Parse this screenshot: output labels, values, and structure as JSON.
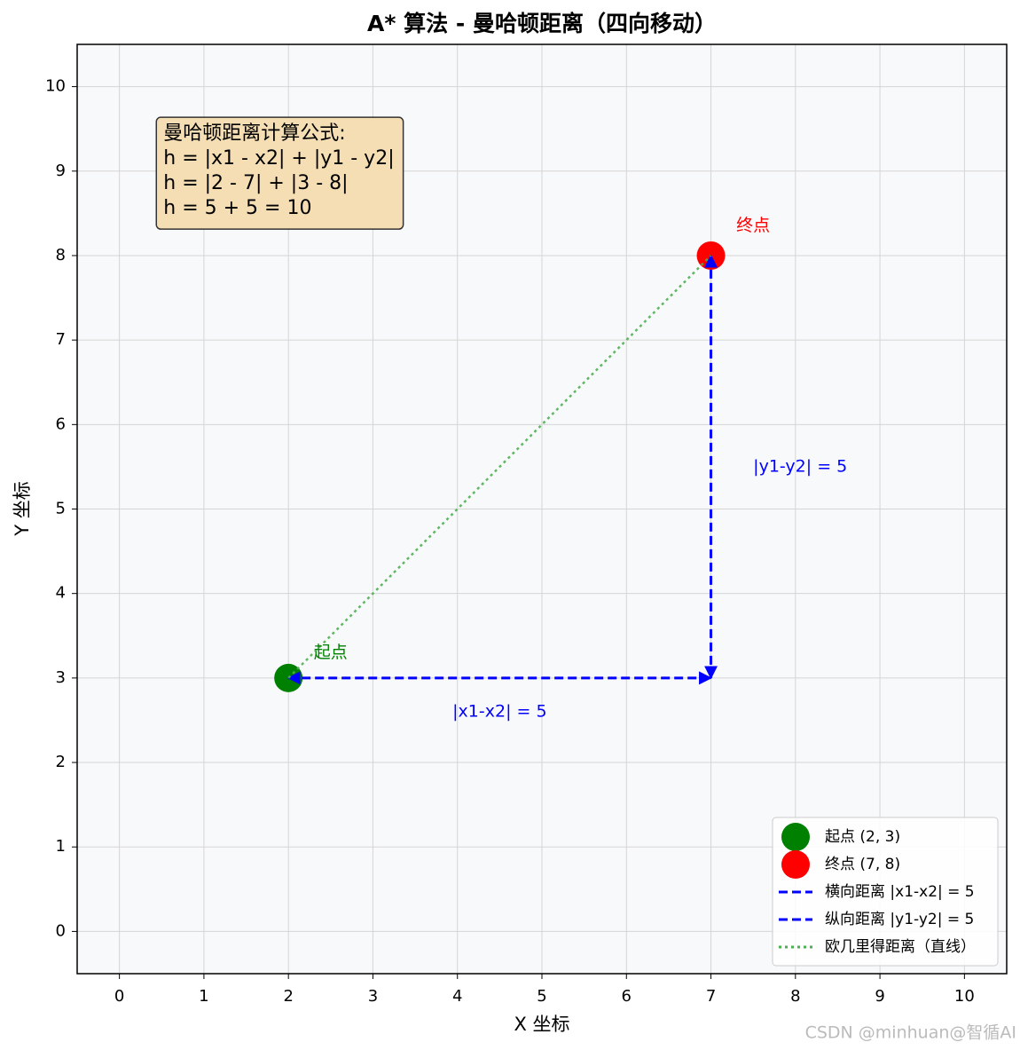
{
  "chart_data": {
    "type": "scatter",
    "title": "A* 算法 - 曼哈顿距离（四向移动）",
    "xlabel": "X 坐标",
    "ylabel": "Y 坐标",
    "xlim": [
      -0.5,
      10.5
    ],
    "ylim": [
      -0.5,
      10.5
    ],
    "xticks": [
      0,
      1,
      2,
      3,
      4,
      5,
      6,
      7,
      8,
      9,
      10
    ],
    "yticks": [
      0,
      1,
      2,
      3,
      4,
      5,
      6,
      7,
      8,
      9,
      10
    ],
    "grid": true,
    "legend": "lower right",
    "series": [
      {
        "name": "起点 (2, 3)",
        "mode": "markers",
        "color": "#008000",
        "x": [
          2
        ],
        "values": [
          3
        ]
      },
      {
        "name": "终点 (7, 8)",
        "mode": "markers",
        "color": "#ff0000",
        "x": [
          7
        ],
        "values": [
          8
        ]
      },
      {
        "name": "横向距离 |x1-x2| = 5",
        "mode": "lines",
        "linestyle": "dashed",
        "arrows": true,
        "color": "#0000ff",
        "x": [
          2,
          7
        ],
        "values": [
          3,
          3
        ]
      },
      {
        "name": "纵向距离 |y1-y2| = 5",
        "mode": "lines",
        "linestyle": "dashed",
        "arrows": true,
        "color": "#0000ff",
        "x": [
          7,
          7
        ],
        "values": [
          3,
          8
        ]
      },
      {
        "name": "欧几里得距离（直线）",
        "mode": "lines",
        "linestyle": "dotted",
        "arrows": false,
        "color": "#4caf50",
        "x": [
          2,
          7
        ],
        "values": [
          3,
          8
        ]
      }
    ],
    "annotations": [
      {
        "text": "起点",
        "x": 2.3,
        "y": 3.3,
        "color": "#008000",
        "align": "start"
      },
      {
        "text": "终点",
        "x": 7.3,
        "y": 8.35,
        "color": "#ff0000",
        "align": "start"
      },
      {
        "text": "|x1-x2| = 5",
        "x": 4.5,
        "y": 2.6,
        "color": "#0000ff",
        "align": "middle"
      },
      {
        "text": "|y1-y2| = 5",
        "x": 7.5,
        "y": 5.5,
        "color": "#0000ff",
        "align": "start"
      }
    ],
    "textbox": {
      "x": 0.5,
      "y": 9.5,
      "color": "#f5deb3",
      "lines": [
        "曼哈顿距离计算公式:",
        "h = |x1 - x2| + |y1 - y2|",
        "h = |2 - 7| + |3 - 8|",
        "h = 5 + 5 = 10"
      ]
    }
  },
  "watermark": "CSDN @minhuan@智循AI"
}
